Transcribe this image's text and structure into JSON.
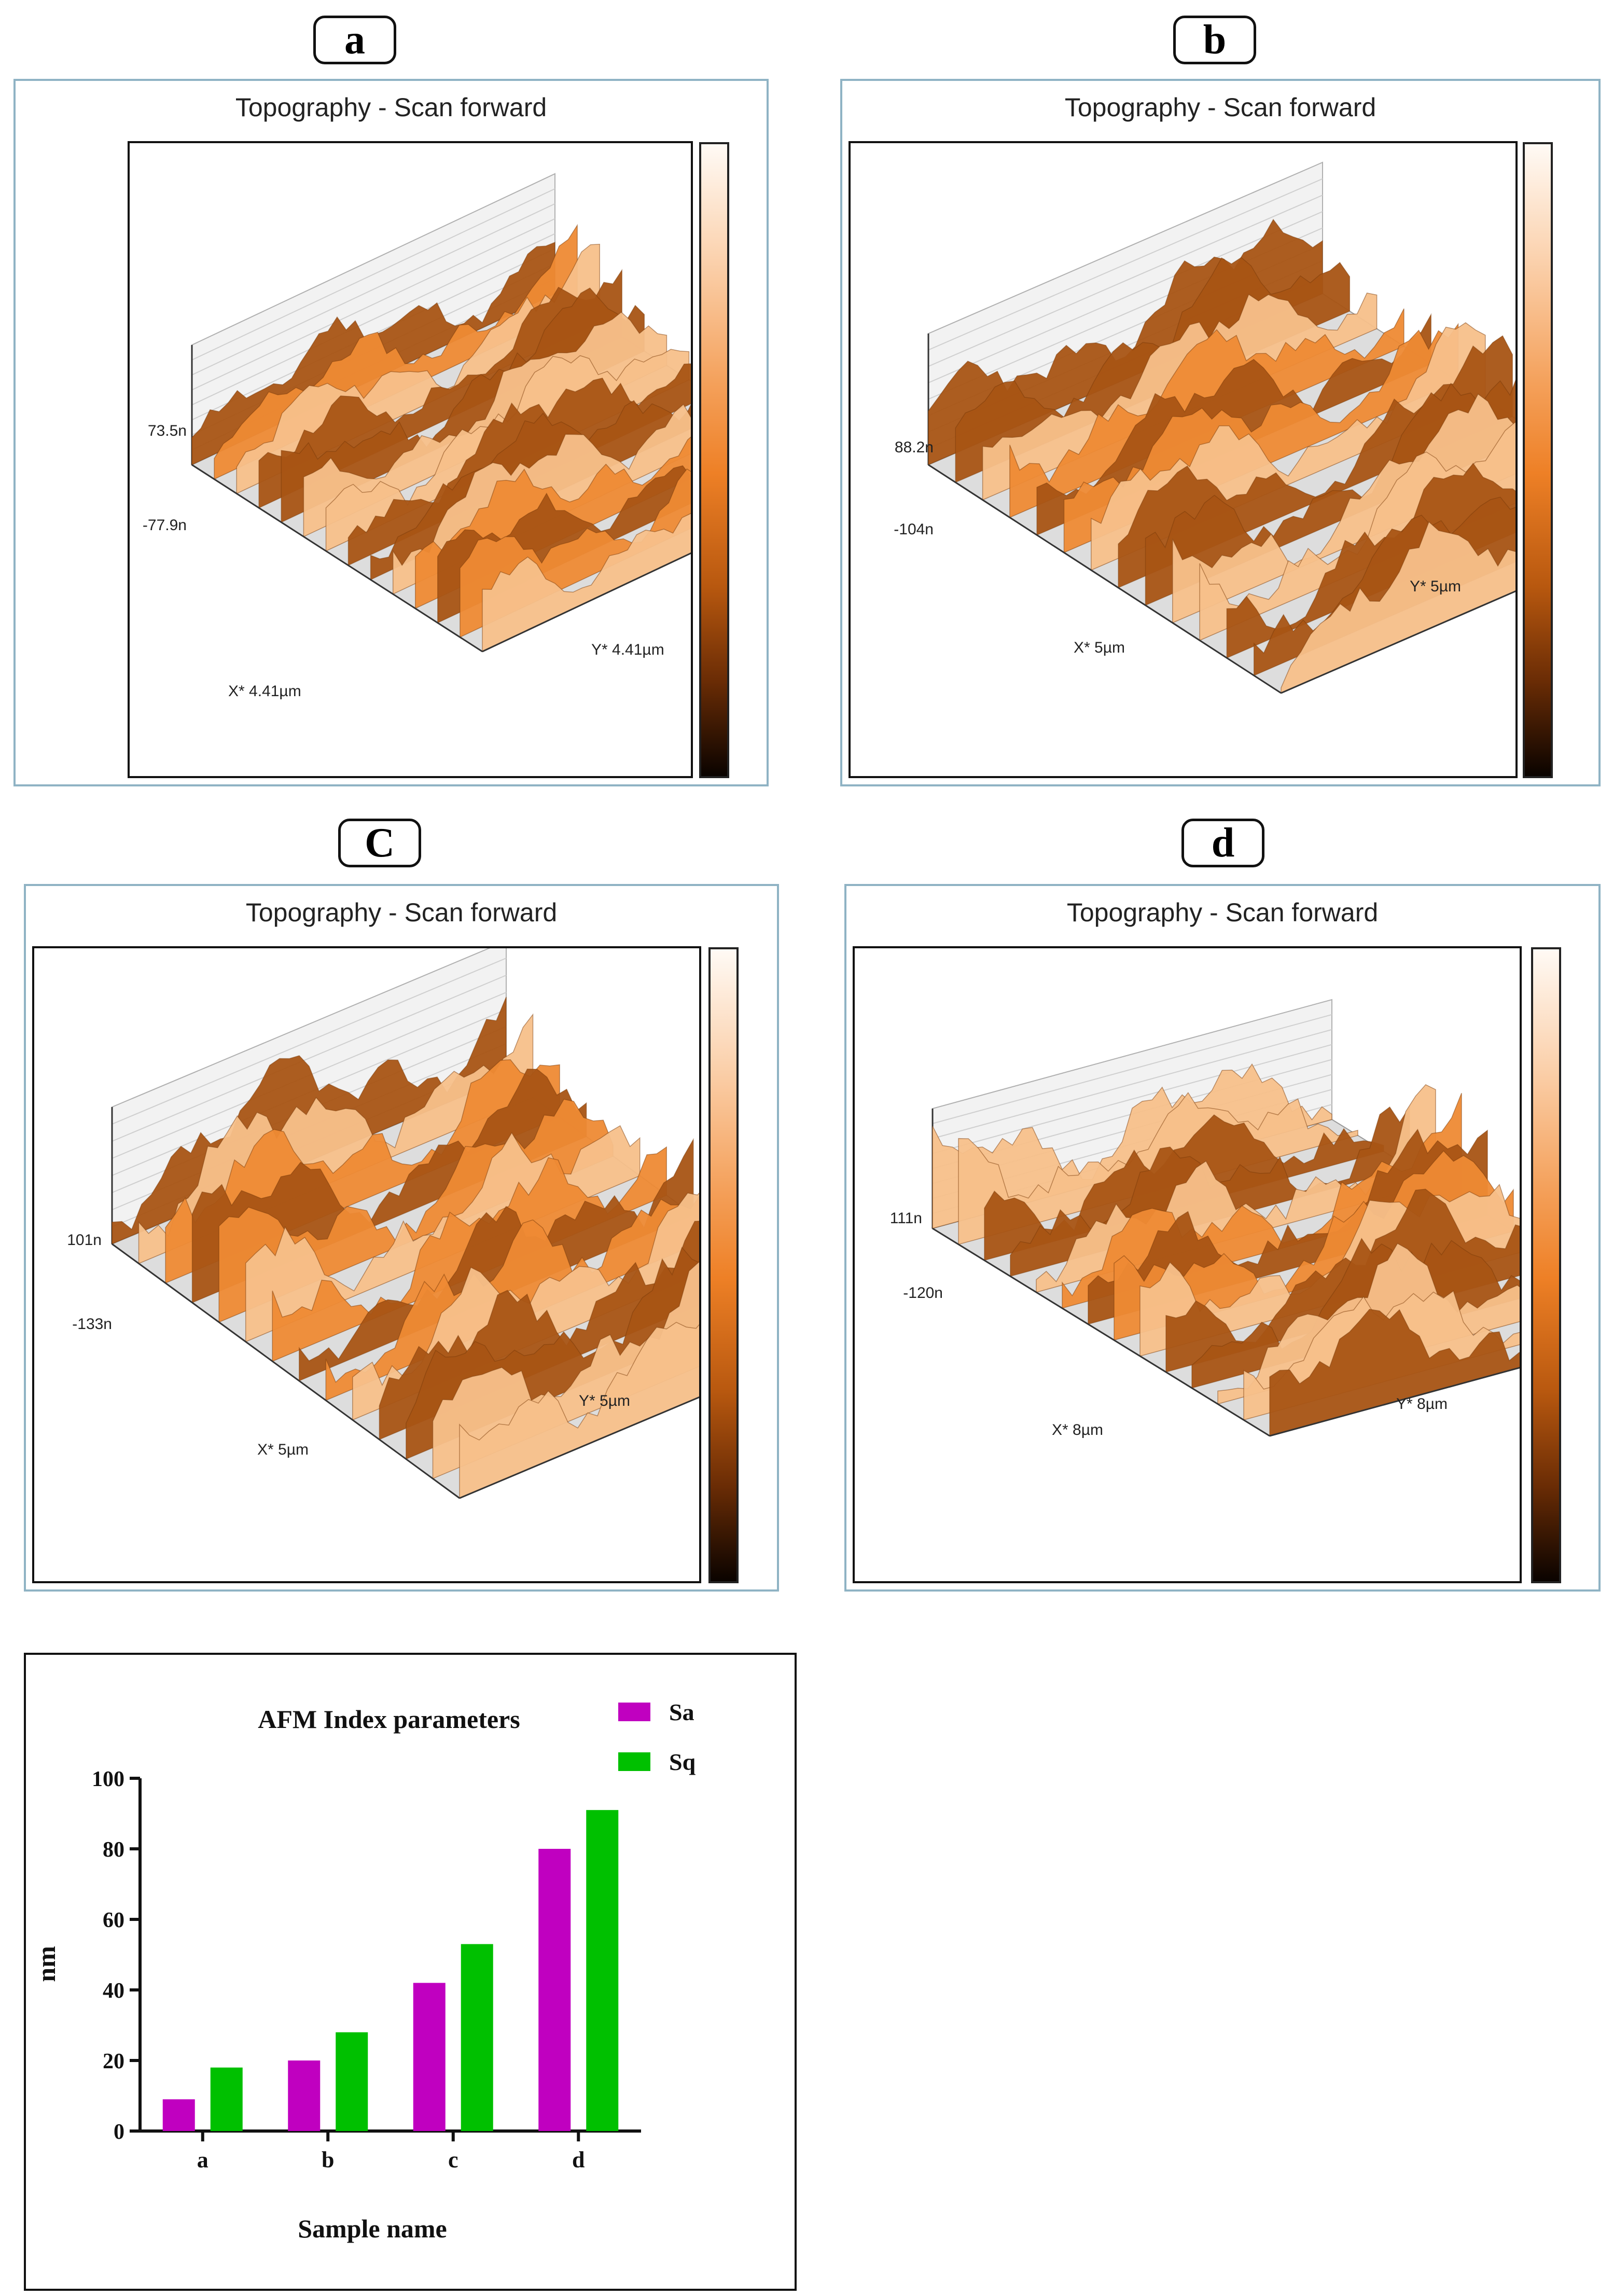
{
  "panels": [
    {
      "label": "a",
      "title": "Topography - Scan forward",
      "z_max": "73.5n",
      "z_min": "-77.9n",
      "x_axis": "X* 4.41µm",
      "y_axis": "Y* 4.41µm"
    },
    {
      "label": "b",
      "title": "Topography - Scan forward",
      "z_max": "88.2n",
      "z_min": "-104n",
      "x_axis": "X* 5µm",
      "y_axis": "Y* 5µm"
    },
    {
      "label": "C",
      "title": "Topography - Scan forward",
      "z_max": "101n",
      "z_min": "-133n",
      "x_axis": "X* 5µm",
      "y_axis": "Y* 5µm"
    },
    {
      "label": "d",
      "title": "Topography - Scan forward",
      "z_max": "111n",
      "z_min": "-120n",
      "x_axis": "X* 8µm",
      "y_axis": "Y* 8µm"
    }
  ],
  "colors": {
    "surface": "#ee8a34",
    "sa": "#c000c0",
    "sq": "#00c000",
    "panel_border": "#8fb3c4"
  },
  "chart_data": {
    "type": "bar",
    "title": "AFM Index parameters",
    "xlabel": "Sample name",
    "ylabel": "nm",
    "categories": [
      "a",
      "b",
      "c",
      "d"
    ],
    "series": [
      {
        "name": "Sa",
        "values": [
          9,
          20,
          42,
          80
        ]
      },
      {
        "name": "Sq",
        "values": [
          18,
          28,
          53,
          91
        ]
      }
    ],
    "ylim": [
      0,
      100
    ],
    "yticks": [
      "0",
      "20",
      "40",
      "60",
      "80",
      "100"
    ],
    "grid": false,
    "legend": "top-right"
  }
}
